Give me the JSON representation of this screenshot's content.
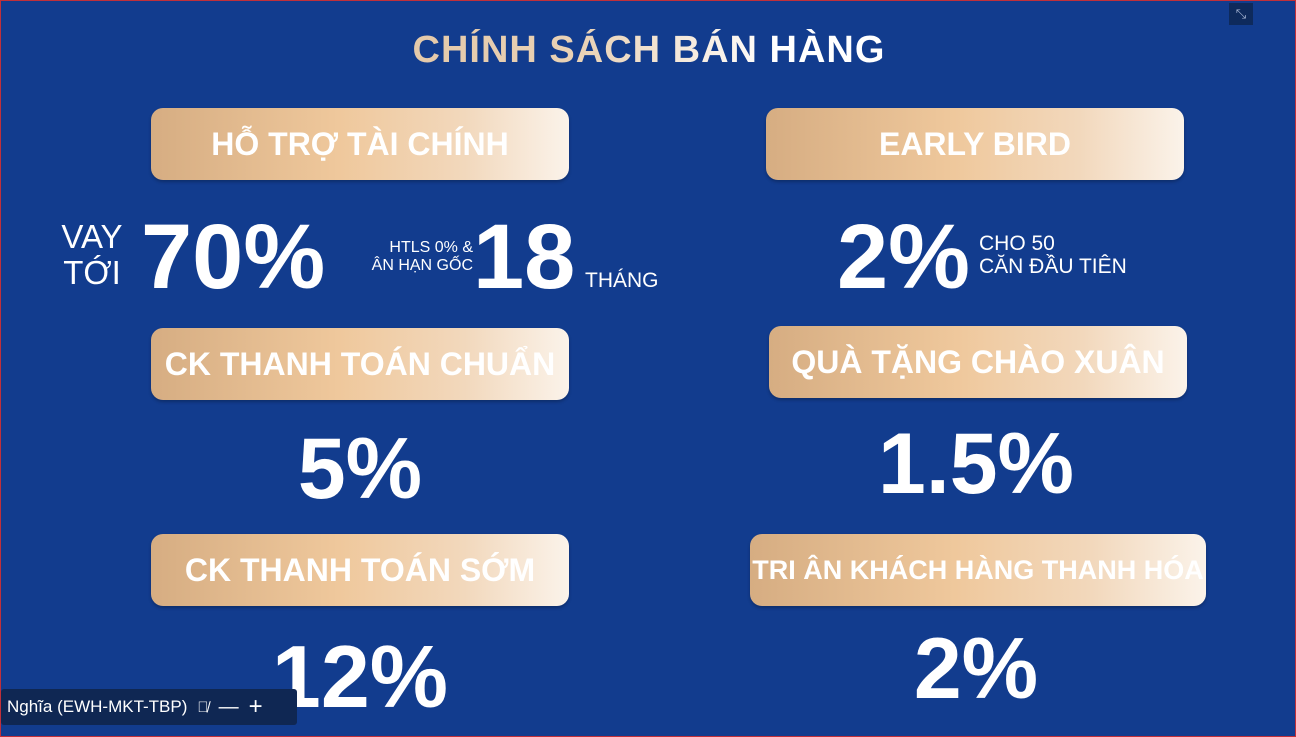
{
  "title": "CHÍNH SÁCH BÁN HÀNG",
  "colors": {
    "background": "#123c8e",
    "pill_start": "#d6ad82",
    "pill_end": "#fbf3ea",
    "text": "#ffffff"
  },
  "cards": {
    "finance": {
      "label": "HỖ TRỢ TÀI CHÍNH",
      "prefix": "VAY",
      "prefix2": "TỚI",
      "value": "70%",
      "note1": "HTLS 0% &",
      "note2": "ÂN HẠN GỐC",
      "value2": "18",
      "unit": "THÁNG"
    },
    "early_bird": {
      "label": "EARLY BIRD",
      "value": "2%",
      "note1": "CHO 50",
      "note2": "CĂN ĐẦU TIÊN"
    },
    "standard_payment": {
      "label": "CK THANH TOÁN CHUẨN",
      "value": "5%"
    },
    "spring_gift": {
      "label": "QUÀ TẶNG CHÀO XUÂN",
      "value": "1.5%"
    },
    "early_payment": {
      "label": "CK THANH TOÁN SỚM",
      "value": "12%"
    },
    "thanh_hoa": {
      "label": "TRI ÂN KHÁCH HÀNG THANH HÓA",
      "value": "2%"
    }
  },
  "participant": {
    "name": "Nghĩa (EWH-MKT-TBP)",
    "icons": [
      "mic-off-icon",
      "minimize-icon",
      "expand-icon"
    ]
  },
  "exit_fullscreen_icon": "exit-fullscreen-icon"
}
